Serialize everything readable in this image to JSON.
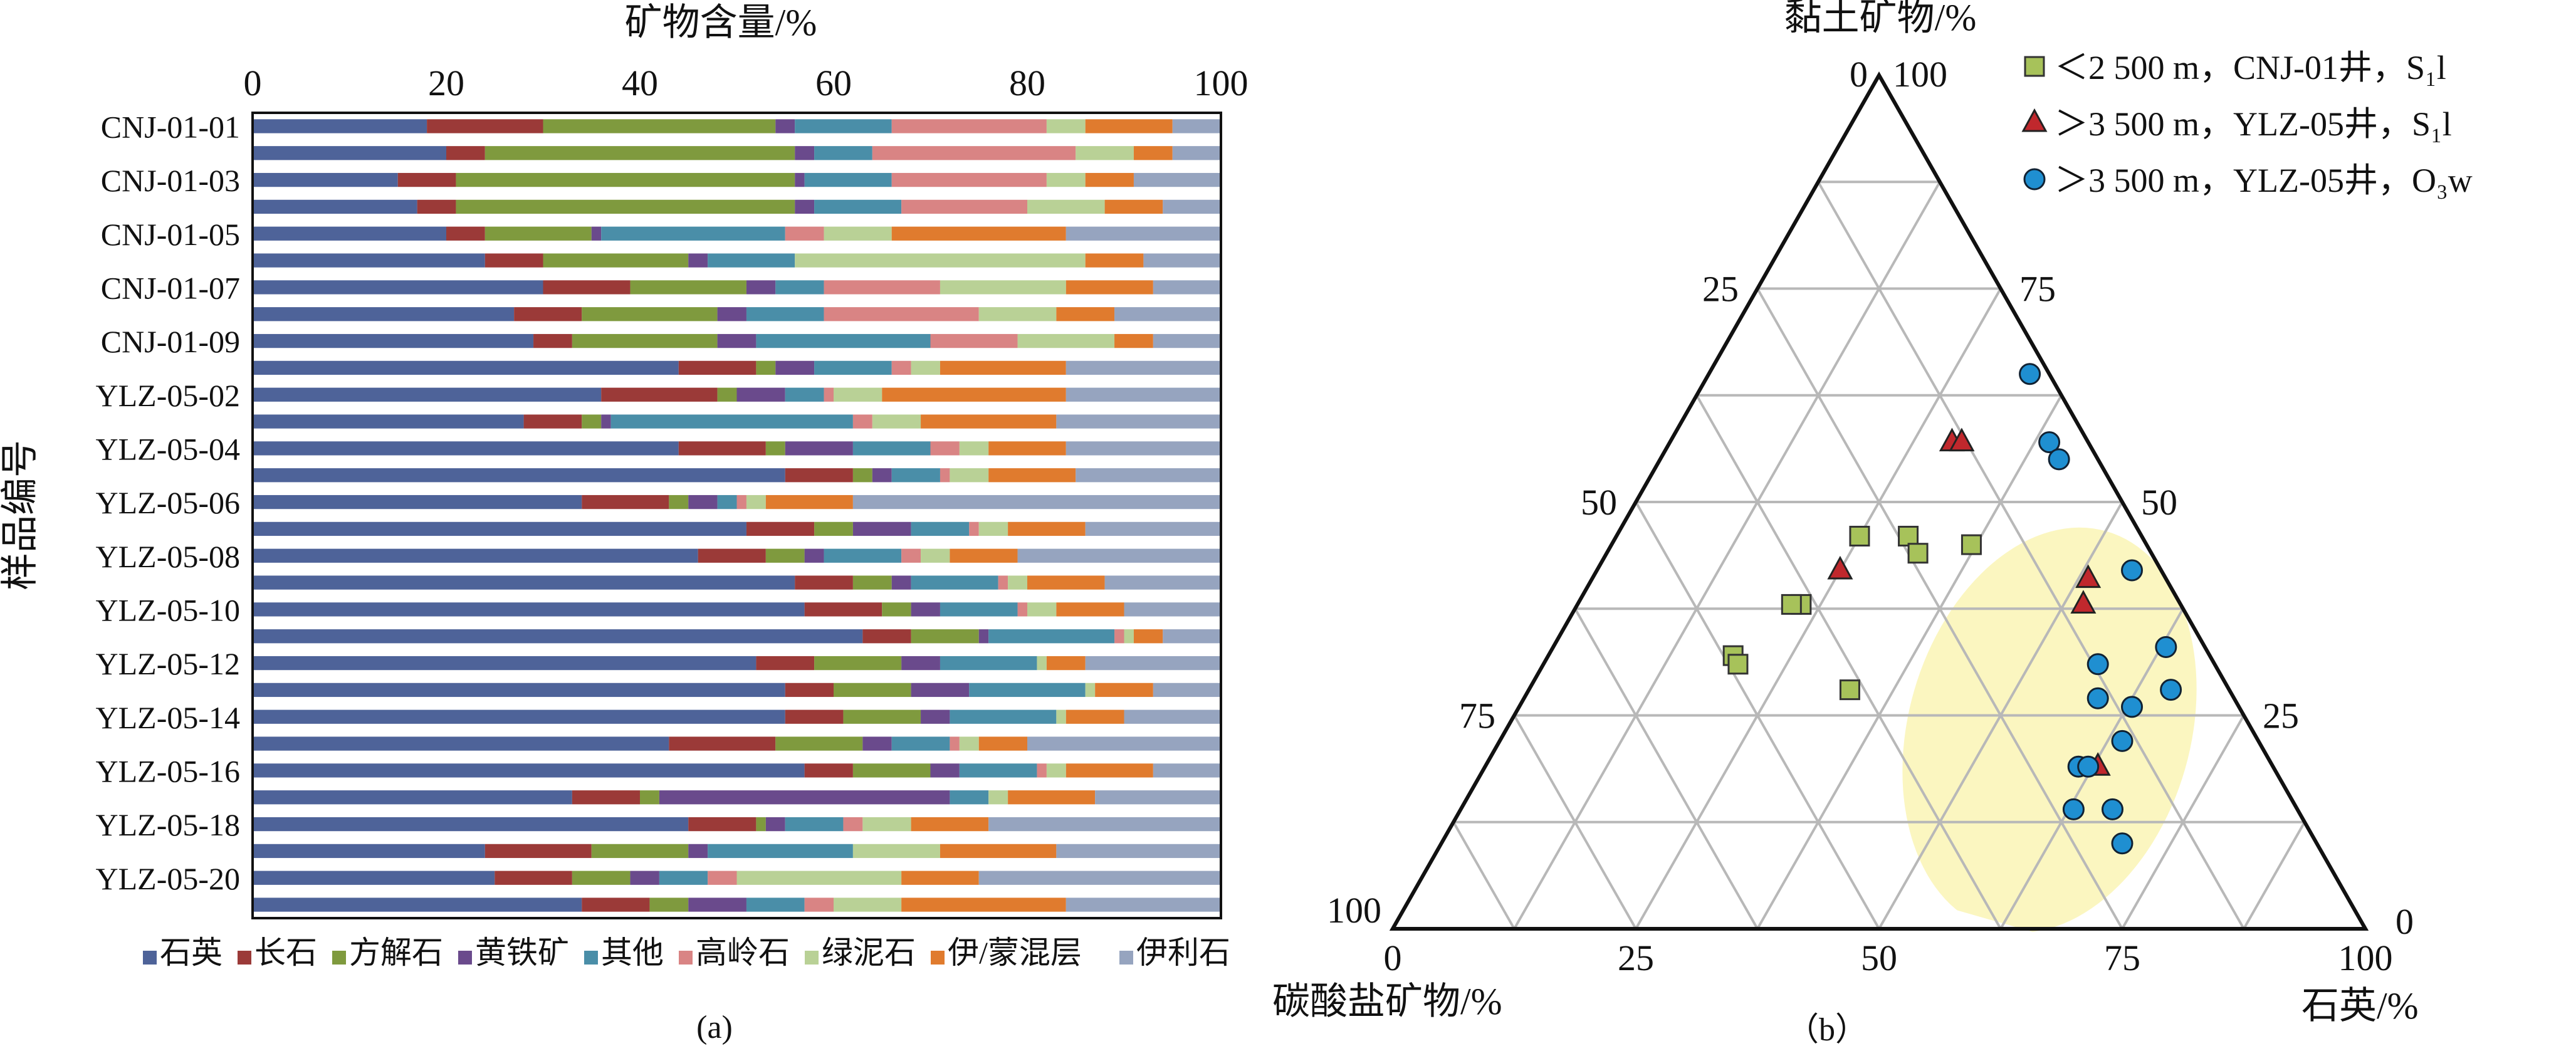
{
  "chart_data": [
    {
      "type": "bar",
      "subtype": "stacked-horizontal-100",
      "panel_label": "(a)",
      "xlabel": "矿物含量/%",
      "ylabel": "样品编号",
      "xlim": [
        0,
        100
      ],
      "xticks": [
        "0",
        "20",
        "40",
        "60",
        "80",
        "100"
      ],
      "ytick_labels": [
        "CNJ-01-01",
        "CNJ-01-03",
        "CNJ-01-05",
        "CNJ-01-07",
        "CNJ-01-09",
        "YLZ-05-02",
        "YLZ-05-04",
        "YLZ-05-06",
        "YLZ-05-08",
        "YLZ-05-10",
        "YLZ-05-12",
        "YLZ-05-14",
        "YLZ-05-16",
        "YLZ-05-18",
        "YLZ-05-20"
      ],
      "ytick_rows": [
        0,
        2,
        4,
        6,
        8,
        10,
        12,
        14,
        16,
        18,
        20,
        22,
        24,
        26,
        28
      ],
      "row_count": 30,
      "legend_position": "bottom",
      "categories": [
        "石英",
        "长石",
        "方解石",
        "黄铁矿",
        "其他",
        "高岭石",
        "绿泥石",
        "伊/蒙混层",
        "伊利石"
      ],
      "colors": [
        "#4e6399",
        "#9b3a38",
        "#7f9a3e",
        "#6a4a8c",
        "#4a8ea8",
        "#d98484",
        "#b9d196",
        "#e07b2e",
        "#96a4bf"
      ],
      "rows": [
        [
          18,
          12,
          24,
          2,
          10,
          16,
          4,
          9,
          5
        ],
        [
          20,
          4,
          32,
          2,
          6,
          21,
          6,
          4,
          5
        ],
        [
          15,
          6,
          35,
          1,
          9,
          16,
          4,
          5,
          9
        ],
        [
          17,
          4,
          35,
          2,
          9,
          13,
          8,
          6,
          6
        ],
        [
          20,
          4,
          11,
          1,
          19,
          4,
          7,
          18,
          16
        ],
        [
          24,
          6,
          15,
          2,
          9,
          0,
          30,
          6,
          8
        ],
        [
          30,
          9,
          12,
          3,
          5,
          12,
          13,
          9,
          7
        ],
        [
          27,
          7,
          14,
          3,
          8,
          16,
          8,
          6,
          11
        ],
        [
          29,
          4,
          15,
          4,
          18,
          9,
          10,
          4,
          7
        ],
        [
          44,
          8,
          2,
          4,
          8,
          2,
          3,
          13,
          16
        ],
        [
          36,
          12,
          2,
          5,
          4,
          1,
          5,
          19,
          16
        ],
        [
          28,
          6,
          2,
          1,
          25,
          2,
          5,
          14,
          17
        ],
        [
          44,
          9,
          2,
          7,
          8,
          3,
          3,
          8,
          16
        ],
        [
          55,
          7,
          2,
          2,
          5,
          1,
          4,
          9,
          15
        ],
        [
          34,
          9,
          2,
          3,
          2,
          1,
          2,
          9,
          38
        ],
        [
          51,
          7,
          4,
          6,
          6,
          1,
          3,
          8,
          14
        ],
        [
          46,
          7,
          4,
          2,
          8,
          2,
          3,
          7,
          21
        ],
        [
          56,
          6,
          4,
          2,
          9,
          1,
          2,
          8,
          12
        ],
        [
          57,
          8,
          3,
          3,
          8,
          1,
          3,
          7,
          10
        ],
        [
          63,
          5,
          7,
          1,
          13,
          1,
          1,
          3,
          6
        ],
        [
          52,
          6,
          9,
          4,
          10,
          0,
          1,
          4,
          14
        ],
        [
          55,
          5,
          8,
          6,
          12,
          0,
          1,
          6,
          7
        ],
        [
          55,
          6,
          8,
          3,
          11,
          0,
          1,
          6,
          10
        ],
        [
          43,
          11,
          9,
          3,
          6,
          1,
          2,
          5,
          20
        ],
        [
          57,
          5,
          8,
          3,
          8,
          1,
          2,
          9,
          7
        ],
        [
          33,
          7,
          2,
          30,
          4,
          0,
          2,
          9,
          13
        ],
        [
          45,
          7,
          1,
          2,
          6,
          2,
          5,
          8,
          24
        ],
        [
          24,
          11,
          10,
          2,
          15,
          0,
          9,
          12,
          17
        ],
        [
          25,
          8,
          6,
          3,
          5,
          3,
          17,
          8,
          25
        ],
        [
          34,
          7,
          4,
          6,
          6,
          3,
          7,
          17,
          16
        ]
      ]
    },
    {
      "type": "scatter",
      "subtype": "ternary",
      "panel_label": "（b）",
      "axes": {
        "top": "黏土矿物/%",
        "left": "碳酸盐矿物/%",
        "right": "石英/%"
      },
      "ticks": [
        "0",
        "25",
        "50",
        "75",
        "100"
      ],
      "grid": true,
      "gridlines_step": 12.5,
      "legend_position": "top-right",
      "highlight_region": "pale-yellow ellipse around the >3 500 m points",
      "highlight_color": "#fbf6c0",
      "series": [
        {
          "name": "＜2 500 m，CNJ-01井，S₁l",
          "marker": "square",
          "color": "#a7c25a",
          "points": [
            {
              "clay": 46,
              "quartz": 25,
              "carbonate": 29
            },
            {
              "clay": 46,
              "quartz": 30,
              "carbonate": 24
            },
            {
              "clay": 44,
              "quartz": 32,
              "carbonate": 24
            },
            {
              "clay": 45,
              "quartz": 37,
              "carbonate": 18
            },
            {
              "clay": 38,
              "quartz": 23,
              "carbonate": 39
            },
            {
              "clay": 38,
              "quartz": 22,
              "carbonate": 40
            },
            {
              "clay": 32,
              "quartz": 19,
              "carbonate": 49
            },
            {
              "clay": 31,
              "quartz": 20,
              "carbonate": 49
            },
            {
              "clay": 28,
              "quartz": 33,
              "carbonate": 39
            }
          ]
        },
        {
          "name": "＞3 500 m，YLZ-05井，S₁l",
          "marker": "triangle",
          "color": "#c0282d",
          "points": [
            {
              "clay": 57,
              "quartz": 29,
              "carbonate": 14
            },
            {
              "clay": 57,
              "quartz": 30,
              "carbonate": 13
            },
            {
              "clay": 42,
              "quartz": 25,
              "carbonate": 33
            },
            {
              "clay": 41,
              "quartz": 51,
              "carbonate": 8
            },
            {
              "clay": 38,
              "quartz": 52,
              "carbonate": 10
            },
            {
              "clay": 19,
              "quartz": 63,
              "carbonate": 18
            }
          ]
        },
        {
          "name": "＞3 500 m，YLZ-05井，O₃w",
          "marker": "circle",
          "color": "#1f8fd1",
          "points": [
            {
              "clay": 65,
              "quartz": 33,
              "carbonate": 2
            },
            {
              "clay": 57,
              "quartz": 39,
              "carbonate": 4
            },
            {
              "clay": 55,
              "quartz": 41,
              "carbonate": 4
            },
            {
              "clay": 42,
              "quartz": 55,
              "carbonate": 3
            },
            {
              "clay": 33,
              "quartz": 63,
              "carbonate": 4
            },
            {
              "clay": 31,
              "quartz": 57,
              "carbonate": 12
            },
            {
              "clay": 28,
              "quartz": 66,
              "carbonate": 6
            },
            {
              "clay": 27,
              "quartz": 59,
              "carbonate": 14
            },
            {
              "clay": 26,
              "quartz": 63,
              "carbonate": 11
            },
            {
              "clay": 22,
              "quartz": 64,
              "carbonate": 14
            },
            {
              "clay": 19,
              "quartz": 61,
              "carbonate": 20
            },
            {
              "clay": 19,
              "quartz": 62,
              "carbonate": 19
            },
            {
              "clay": 14,
              "quartz": 63,
              "carbonate": 23
            },
            {
              "clay": 14,
              "quartz": 67,
              "carbonate": 19
            },
            {
              "clay": 10,
              "quartz": 70,
              "carbonate": 20
            }
          ]
        }
      ]
    }
  ]
}
